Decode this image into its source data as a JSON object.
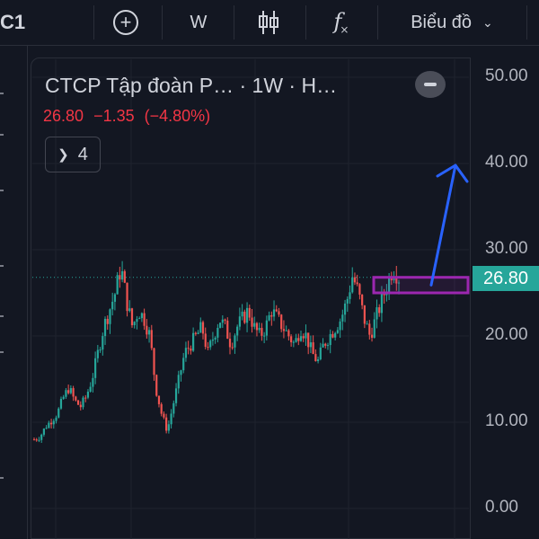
{
  "toolbar": {
    "symbol": "C1",
    "plus_icon": "plus-circle-icon",
    "interval": "W",
    "candle_icon": "candlestick-icon",
    "indicator_icon": "fx-icon",
    "chart_type_label": "Biểu đồ"
  },
  "legend": {
    "title": "CTCP Tập đoàn P… · 1W · H…",
    "price": "26.80",
    "change": "−1.35",
    "change_pct": "(−4.80%)",
    "indicators_count": "4"
  },
  "colors": {
    "up": "#26a69a",
    "down": "#ef5350",
    "background": "#131722",
    "grid": "#1f232e",
    "annotation_box": "#9c27b0",
    "annotation_arrow": "#2962ff"
  },
  "price_tag": "26.80",
  "chart_data": {
    "type": "candlestick",
    "interval": "1W",
    "last_price": 26.8,
    "ylim": [
      0,
      50
    ],
    "yticks": [
      "50.00",
      "40.00",
      "30.00",
      "20.00",
      "10.00",
      "0.00"
    ],
    "ytick_values": [
      50,
      40,
      30,
      20,
      10,
      0
    ],
    "approx_close_path": [
      8.0,
      8.3,
      9.5,
      10.2,
      11.0,
      12.8,
      14.0,
      12.5,
      11.8,
      13.0,
      15.0,
      18.0,
      21.0,
      23.0,
      25.0,
      28.0,
      24.0,
      21.0,
      23.0,
      22.0,
      20.0,
      14.0,
      11.0,
      9.0,
      12.0,
      15.0,
      18.0,
      19.0,
      20.0,
      21.0,
      18.0,
      20.0,
      22.0,
      21.0,
      19.0,
      21.0,
      22.0,
      23.0,
      21.0,
      20.0,
      21.0,
      23.0,
      22.0,
      21.0,
      20.0,
      19.0,
      21.0,
      20.0,
      18.0,
      17.0,
      19.0,
      20.0,
      21.0,
      22.0,
      24.0,
      27.0,
      25.0,
      22.0,
      20.0,
      22.0,
      24.0,
      26.0,
      28.0,
      26.8
    ],
    "annotations": {
      "box_low": 25.0,
      "box_high": 26.8,
      "arrow_target": 40.0
    }
  }
}
